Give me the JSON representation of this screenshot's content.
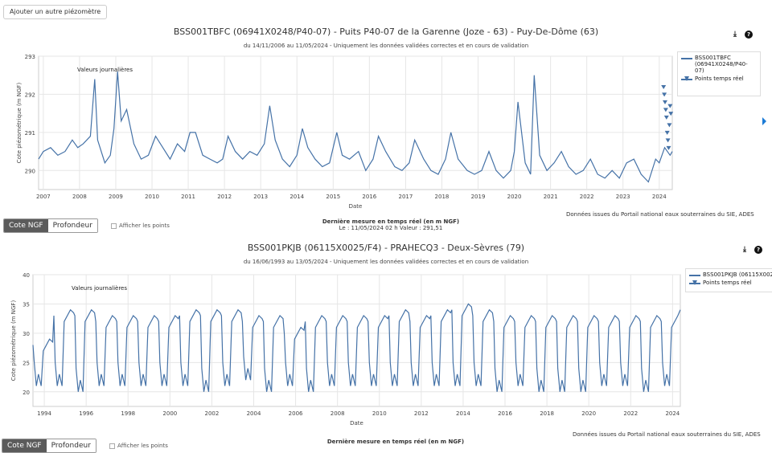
{
  "toolbar": {
    "add_button_label": "Ajouter un autre piézomètre"
  },
  "colors": {
    "series": "#4572a7",
    "grid": "#e6e6e6",
    "active_toggle": "#5b5b5b"
  },
  "charts": [
    {
      "title": "BSS001TBFC (06941X0248/P40-07) - Puits P40-07 de la Garenne (Joze - 63) - Puy-De-Dôme (63)",
      "subtitle": "du 14/11/2006 au 11/05/2024 - Uniquement les données validées correctes et en cours de validation",
      "annotation": "Valeurs journalières",
      "legend": {
        "series_name": "BSS001TBFC (06941X0248/P40-07)",
        "points_name": "Points temps réel"
      },
      "source": "Données issues du Portail national eaux souterraines du SIE, ADES",
      "toggle": {
        "active": "Cote NGF",
        "inactive": "Profondeur"
      },
      "show_points_label": "Afficher les points",
      "last_measure_title": "Dernière mesure en temps réel (en m NGF)",
      "last_measure_value": "Le : 11/05/2024 02 h Valeur : 291,51"
    },
    {
      "title": "BSS001PKJB (06115X0025/F4) - PRAHECQ3 - Deux-Sèvres (79)",
      "subtitle": "du 16/06/1993 au 13/05/2024 - Uniquement les données validées correctes et en cours de validation",
      "annotation": "Valeurs journalières",
      "legend": {
        "series_name": "BSS001PKJB (06115X002",
        "points_name": "Points temps réel"
      },
      "source": "Données issues du Portail national eaux souterraines du SIE, ADES",
      "toggle": {
        "active": "Cote NGF",
        "inactive": "Profondeur"
      },
      "show_points_label": "Afficher les points",
      "last_measure_title": "Dernière mesure en temps réel (en m NGF)",
      "last_measure_value": ""
    }
  ],
  "chart_data": [
    {
      "type": "line",
      "xlabel": "Date",
      "ylabel": "Cote piézométrique (m NGF)",
      "xlim": [
        2006.87,
        2024.36
      ],
      "ylim": [
        289.5,
        293
      ],
      "yticks": [
        290,
        291,
        292,
        293
      ],
      "xticks": [
        2007,
        2008,
        2009,
        2010,
        2011,
        2012,
        2013,
        2014,
        2015,
        2016,
        2017,
        2018,
        2019,
        2020,
        2021,
        2022,
        2023,
        2024
      ],
      "grid": true,
      "legend_position": "top-right",
      "series": [
        {
          "name": "BSS001TBFC (06941X0248/P40-07)",
          "x": [
            2006.87,
            2007.0,
            2007.2,
            2007.4,
            2007.6,
            2007.8,
            2007.95,
            2008.1,
            2008.3,
            2008.42,
            2008.5,
            2008.7,
            2008.85,
            2008.95,
            2009.05,
            2009.15,
            2009.3,
            2009.5,
            2009.7,
            2009.9,
            2010.1,
            2010.3,
            2010.5,
            2010.7,
            2010.9,
            2011.05,
            2011.2,
            2011.4,
            2011.6,
            2011.8,
            2011.95,
            2012.1,
            2012.3,
            2012.5,
            2012.7,
            2012.9,
            2013.1,
            2013.25,
            2013.4,
            2013.6,
            2013.8,
            2014.0,
            2014.15,
            2014.3,
            2014.5,
            2014.7,
            2014.9,
            2015.1,
            2015.25,
            2015.45,
            2015.7,
            2015.9,
            2016.1,
            2016.25,
            2016.45,
            2016.7,
            2016.9,
            2017.1,
            2017.25,
            2017.5,
            2017.7,
            2017.9,
            2018.1,
            2018.25,
            2018.45,
            2018.7,
            2018.9,
            2019.1,
            2019.3,
            2019.5,
            2019.7,
            2019.9,
            2020.0,
            2020.1,
            2020.3,
            2020.45,
            2020.55,
            2020.7,
            2020.9,
            2021.1,
            2021.3,
            2021.5,
            2021.7,
            2021.9,
            2022.1,
            2022.3,
            2022.5,
            2022.7,
            2022.9,
            2023.1,
            2023.3,
            2023.5,
            2023.7,
            2023.9,
            2024.0,
            2024.15,
            2024.3,
            2024.36
          ],
          "y": [
            290.3,
            290.5,
            290.6,
            290.4,
            290.5,
            290.8,
            290.6,
            290.7,
            290.9,
            292.4,
            290.8,
            290.2,
            290.4,
            291.1,
            292.6,
            291.3,
            291.6,
            290.7,
            290.3,
            290.4,
            290.9,
            290.6,
            290.3,
            290.7,
            290.5,
            291.0,
            291.0,
            290.4,
            290.3,
            290.2,
            290.3,
            290.9,
            290.5,
            290.3,
            290.5,
            290.4,
            290.7,
            291.7,
            290.8,
            290.3,
            290.1,
            290.4,
            291.1,
            290.6,
            290.3,
            290.1,
            290.2,
            291.0,
            290.4,
            290.3,
            290.5,
            290.0,
            290.3,
            290.9,
            290.5,
            290.1,
            290.0,
            290.2,
            290.8,
            290.3,
            290.0,
            289.9,
            290.3,
            291.0,
            290.3,
            290.0,
            289.9,
            290.0,
            290.5,
            290.0,
            289.8,
            290.0,
            290.5,
            291.8,
            290.2,
            289.9,
            292.5,
            290.4,
            290.0,
            290.2,
            290.5,
            290.1,
            289.9,
            290.0,
            290.3,
            289.9,
            289.8,
            290.0,
            289.8,
            290.2,
            290.3,
            289.9,
            289.7,
            290.3,
            290.2,
            290.6,
            290.4,
            290.5
          ]
        },
        {
          "name": "Points temps réel",
          "x": [
            2024.12,
            2024.14,
            2024.16,
            2024.18,
            2024.2,
            2024.22,
            2024.24,
            2024.26,
            2024.28,
            2024.3,
            2024.32
          ],
          "y": [
            292.2,
            292.0,
            291.8,
            291.6,
            291.4,
            291.0,
            290.8,
            290.6,
            291.2,
            291.7,
            291.5
          ]
        }
      ]
    },
    {
      "type": "line",
      "xlabel": "Date",
      "ylabel": "Cote piézométrique (m NGF)",
      "xlim": [
        1993.46,
        2024.37
      ],
      "ylim": [
        17.5,
        40
      ],
      "yticks": [
        20,
        25,
        30,
        35,
        40
      ],
      "xticks": [
        1994,
        1996,
        1998,
        2000,
        2002,
        2004,
        2006,
        2008,
        2010,
        2012,
        2014,
        2016,
        2018,
        2020,
        2022,
        2024
      ],
      "grid": true,
      "legend_position": "top-right",
      "series": [
        {
          "name": "BSS001PKJB (06115X002",
          "cycle_years": [
            1993,
            1994,
            1995,
            1996,
            1997,
            1998,
            1999,
            2000,
            2001,
            2002,
            2003,
            2004,
            2005,
            2006,
            2007,
            2008,
            2009,
            2010,
            2011,
            2012,
            2013,
            2014,
            2015,
            2016,
            2017,
            2018,
            2019,
            2020,
            2021,
            2022,
            2023
          ],
          "winter_high": [
            29,
            34,
            34,
            33,
            33,
            33,
            33,
            34,
            34,
            34,
            33,
            33,
            31,
            33,
            33,
            33,
            33,
            34,
            33,
            34,
            35,
            34,
            33,
            33,
            33,
            33,
            33,
            33,
            33,
            33,
            33
          ],
          "summer_low": [
            21,
            21,
            20,
            21,
            21,
            21,
            21,
            21,
            20,
            21,
            22,
            20,
            21,
            20,
            21,
            21,
            21,
            21,
            21,
            21,
            21,
            21,
            20,
            21,
            20,
            20,
            20,
            21,
            21,
            20,
            21
          ],
          "x_end": 2024.37,
          "y_end": 34
        }
      ]
    }
  ]
}
